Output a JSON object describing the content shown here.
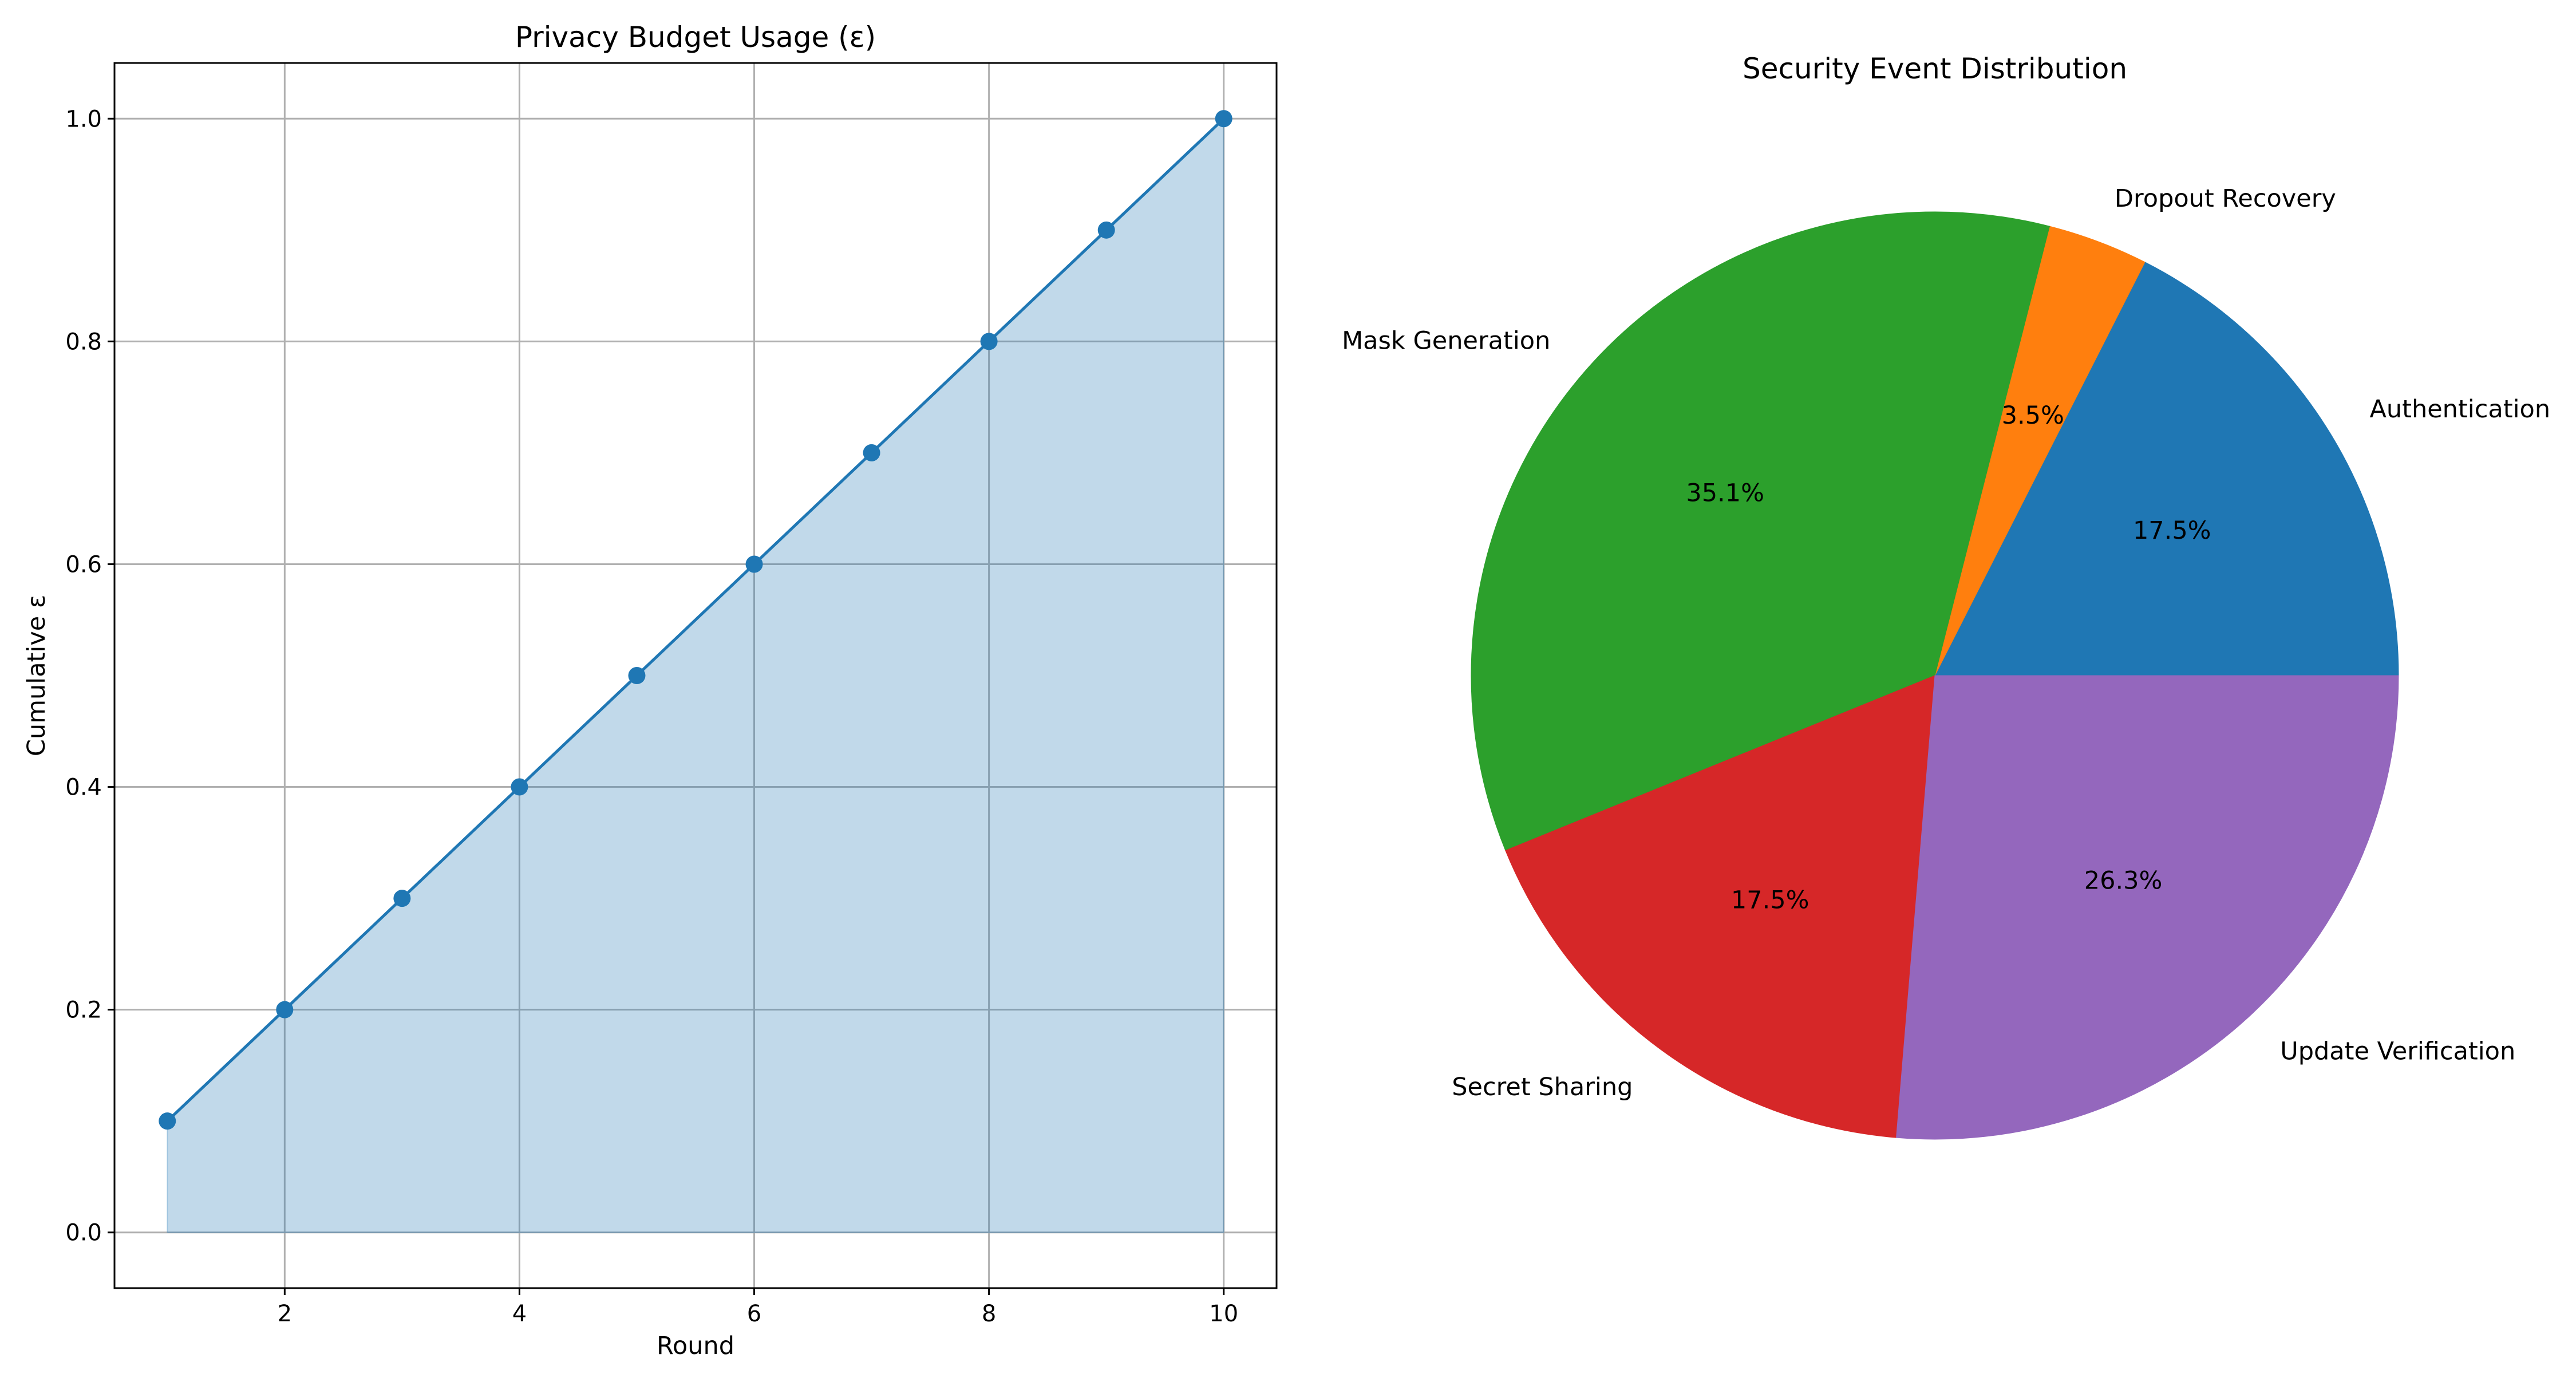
{
  "chart_data": [
    {
      "type": "area",
      "title": "Privacy Budget Usage (ε)",
      "xlabel": "Round",
      "ylabel": "Cumulative ε",
      "x": [
        1,
        2,
        3,
        4,
        5,
        6,
        7,
        8,
        9,
        10
      ],
      "y": [
        0.1,
        0.2,
        0.3,
        0.4,
        0.5,
        0.6,
        0.7,
        0.8,
        0.9,
        1.0
      ],
      "xlim": [
        0.55,
        10.45
      ],
      "ylim": [
        -0.05,
        1.05
      ],
      "xticks": [
        2,
        4,
        6,
        8,
        10
      ],
      "yticks": [
        0.0,
        0.2,
        0.4,
        0.6,
        0.8,
        1.0
      ],
      "xtick_labels": [
        "2",
        "4",
        "6",
        "8",
        "10"
      ],
      "ytick_labels": [
        "0.0",
        "0.2",
        "0.4",
        "0.6",
        "0.8",
        "1.0"
      ],
      "grid": true,
      "markers": true,
      "colors": {
        "line": "#1f77b4",
        "fill": "#1f77b4",
        "fill_alpha": 0.28,
        "grid": "#b0b0b0"
      }
    },
    {
      "type": "pie",
      "title": "Security Event Distribution",
      "start_angle_deg": 0,
      "direction": "counterclockwise",
      "slices": [
        {
          "label": "Authentication",
          "value": 17.5,
          "pct_label": "17.5%",
          "color": "#1f77b4"
        },
        {
          "label": "Dropout Recovery",
          "value": 3.5,
          "pct_label": "3.5%",
          "color": "#ff7f0e"
        },
        {
          "label": "Mask Generation",
          "value": 35.1,
          "pct_label": "35.1%",
          "color": "#2ca02c"
        },
        {
          "label": "Secret Sharing",
          "value": 17.5,
          "pct_label": "17.5%",
          "color": "#d62728"
        },
        {
          "label": "Update Verification",
          "value": 26.3,
          "pct_label": "26.3%",
          "color": "#9467bd"
        }
      ]
    }
  ]
}
